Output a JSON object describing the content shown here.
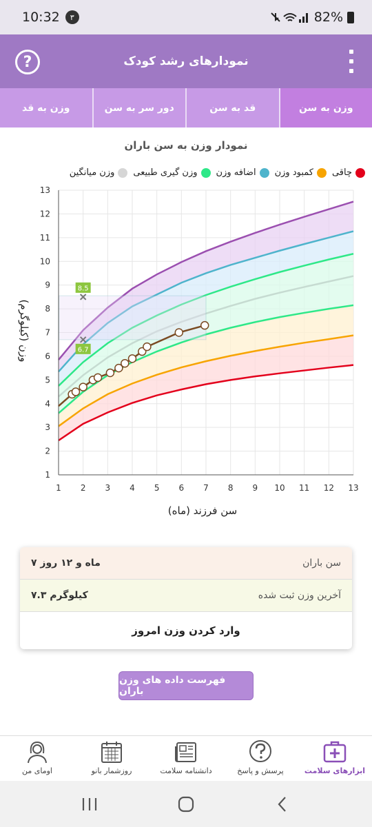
{
  "status_bar": {
    "time": "10:32",
    "notif_count": "۳",
    "battery": "82%"
  },
  "app_bar": {
    "title": "نمودارهای رشد کودک",
    "help_icon": "?"
  },
  "tabs": [
    {
      "label": "وزن به سن",
      "active": true
    },
    {
      "label": "قد به سن",
      "active": false
    },
    {
      "label": "دور سر به سن",
      "active": false
    },
    {
      "label": "وزن به قد",
      "active": false
    }
  ],
  "chart_title": "نمودار وزن به سن باران",
  "legend": [
    {
      "label": "چاقی",
      "color": "#e3001b"
    },
    {
      "label": "کمبود وزن",
      "color": "#f7a400"
    },
    {
      "label": "اضافه وزن",
      "color": "#4eb4cc"
    },
    {
      "label": "وزن گیری طبیعی",
      "color": "#2ee888"
    },
    {
      "label": "وزن میانگین",
      "color": "#d6d6d6"
    }
  ],
  "chart_data": {
    "type": "line",
    "xlabel": "سن فرزند (ماه)",
    "ylabel": "وزن (کیلوگرم)",
    "xlim": [
      1,
      13
    ],
    "ylim": [
      1,
      13
    ],
    "x_ticks": [
      1,
      2,
      3,
      4,
      5,
      6,
      7,
      8,
      9,
      10,
      11,
      12,
      13
    ],
    "y_ticks": [
      1,
      2,
      3,
      4,
      5,
      6,
      7,
      8,
      9,
      10,
      11,
      12,
      13
    ],
    "x": [
      1,
      2,
      3,
      4,
      5,
      6,
      7,
      8,
      9,
      10,
      11,
      12,
      13
    ],
    "curves": [
      {
        "color": "#9b4fb0",
        "values": [
          5.85,
          7.1,
          8.05,
          8.85,
          9.45,
          9.97,
          10.43,
          10.83,
          11.2,
          11.55,
          11.88,
          12.2,
          12.52
        ]
      },
      {
        "color": "#4eb4cc",
        "values": [
          5.35,
          6.5,
          7.4,
          8.1,
          8.6,
          9.1,
          9.5,
          9.85,
          10.15,
          10.45,
          10.73,
          11.0,
          11.27
        ]
      },
      {
        "color": "#2ee888",
        "values": [
          4.75,
          5.75,
          6.55,
          7.2,
          7.72,
          8.18,
          8.58,
          8.93,
          9.25,
          9.55,
          9.82,
          10.08,
          10.32
        ]
      },
      {
        "color": "#c6dbd1",
        "values": [
          4.3,
          5.2,
          5.95,
          6.55,
          7.05,
          7.45,
          7.8,
          8.12,
          8.42,
          8.68,
          8.92,
          9.15,
          9.38
        ]
      },
      {
        "color": "#2ee888",
        "values": [
          3.6,
          4.5,
          5.2,
          5.75,
          6.2,
          6.58,
          6.92,
          7.2,
          7.44,
          7.65,
          7.83,
          8.0,
          8.15
        ]
      },
      {
        "color": "#f7a400",
        "values": [
          3.05,
          3.8,
          4.4,
          4.85,
          5.22,
          5.53,
          5.79,
          6.02,
          6.22,
          6.4,
          6.57,
          6.72,
          6.88
        ]
      },
      {
        "color": "#e3001b",
        "values": [
          2.45,
          3.15,
          3.63,
          4.03,
          4.35,
          4.6,
          4.82,
          5.0,
          5.15,
          5.28,
          5.4,
          5.52,
          5.63
        ]
      }
    ],
    "child_points": [
      {
        "x": 1.0,
        "y": 3.9
      },
      {
        "x": 1.55,
        "y": 4.4
      },
      {
        "x": 1.7,
        "y": 4.5
      },
      {
        "x": 2.0,
        "y": 4.7
      },
      {
        "x": 2.4,
        "y": 5.0
      },
      {
        "x": 2.6,
        "y": 5.1
      },
      {
        "x": 3.1,
        "y": 5.3
      },
      {
        "x": 3.45,
        "y": 5.5
      },
      {
        "x": 3.7,
        "y": 5.7
      },
      {
        "x": 4.0,
        "y": 5.9
      },
      {
        "x": 4.4,
        "y": 6.2
      },
      {
        "x": 4.6,
        "y": 6.4
      },
      {
        "x": 5.9,
        "y": 7.0
      },
      {
        "x": 6.95,
        "y": 7.3
      }
    ],
    "markers": [
      {
        "x": 2,
        "y": 8.5,
        "label": "8.5"
      },
      {
        "x": 2,
        "y": 6.7,
        "label": "6.7"
      }
    ],
    "highlight_rect": {
      "x0": 2,
      "x1": 7,
      "y0": 6.7,
      "y1": 8.55
    }
  },
  "info": {
    "age_label": "سن باران",
    "age_value": "۷ ماه و ۱۲ روز",
    "weight_label": "آخرین وزن ثبت شده",
    "weight_value": "۷.۳ کیلوگرم",
    "action_label": "وارد کردن وزن امروز"
  },
  "list_button": "فهرست داده های وزن باران",
  "bottom_nav": [
    {
      "label": "ابزارهای سلامت",
      "icon": "medical-kit-icon",
      "active": true
    },
    {
      "label": "پرسش و پاسخ",
      "icon": "question-icon",
      "active": false
    },
    {
      "label": "دانشنامه سلامت",
      "icon": "newspaper-icon",
      "active": false
    },
    {
      "label": "روزشمار بانو",
      "icon": "calendar-icon",
      "active": false
    },
    {
      "label": "اومای من",
      "icon": "woman-profile-icon",
      "active": false
    }
  ]
}
